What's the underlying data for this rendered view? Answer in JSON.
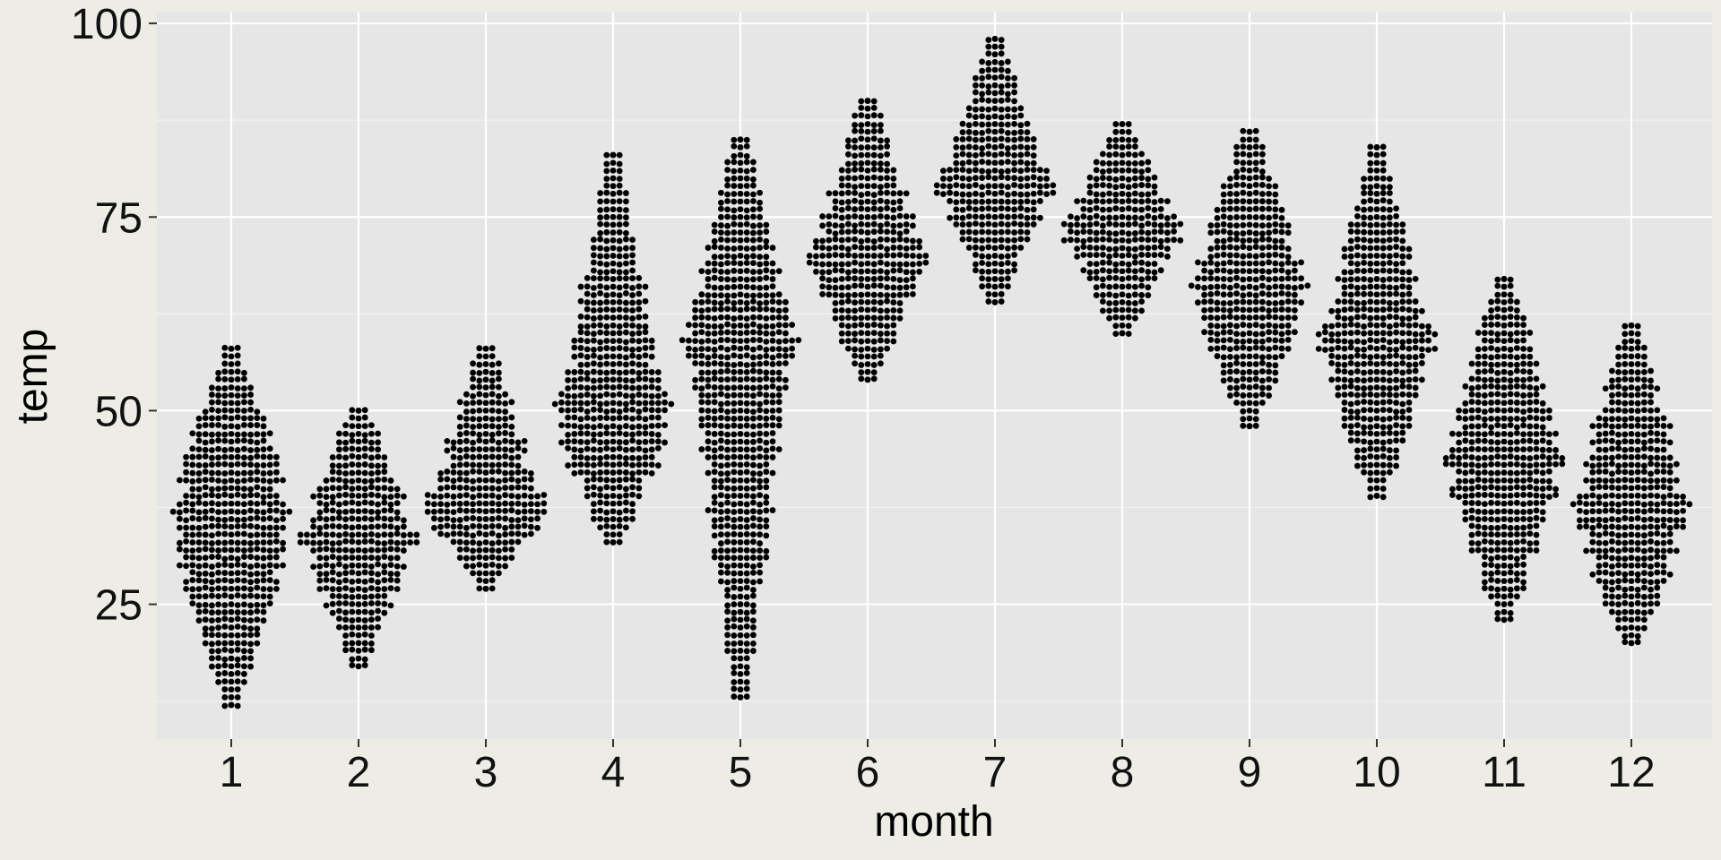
{
  "chart_data": {
    "type": "scatter",
    "subtype": "beeswarm",
    "title": "",
    "xlabel": "month",
    "ylabel": "temp",
    "categories": [
      "1",
      "2",
      "3",
      "4",
      "5",
      "6",
      "7",
      "8",
      "9",
      "10",
      "11",
      "12"
    ],
    "ylim": [
      7.6,
      101.4
    ],
    "y_ticks": [
      25,
      50,
      75,
      100
    ],
    "y_minor_ticks": [
      12.5,
      37.5,
      62.5,
      87.5
    ],
    "grid": true,
    "legend": "none",
    "point_color": "#000000",
    "panel_color": "#e6e6e6",
    "background_color": "#edede5",
    "groups": [
      {
        "month": "1",
        "min": 12,
        "max": 58,
        "q1": 27,
        "median": 36,
        "q3": 44
      },
      {
        "month": "2",
        "min": 17,
        "max": 50,
        "q1": 29,
        "median": 33,
        "q3": 40
      },
      {
        "month": "3",
        "min": 27,
        "max": 58,
        "q1": 34,
        "median": 38,
        "q3": 43
      },
      {
        "month": "4",
        "min": 33,
        "max": 83,
        "q1": 43,
        "median": 50,
        "q3": 55
      },
      {
        "month": "5",
        "min": 13,
        "max": 85,
        "q1": 53,
        "median": 59,
        "q3": 64
      },
      {
        "month": "6",
        "min": 54,
        "max": 90,
        "q1": 65,
        "median": 70,
        "q3": 75
      },
      {
        "month": "7",
        "min": 64,
        "max": 98,
        "q1": 75,
        "median": 79,
        "q3": 83
      },
      {
        "month": "8",
        "min": 60,
        "max": 87,
        "q1": 70,
        "median": 73,
        "q3": 77
      },
      {
        "month": "9",
        "min": 48,
        "max": 86,
        "q1": 60,
        "median": 67,
        "q3": 72
      },
      {
        "month": "10",
        "min": 39,
        "max": 84,
        "q1": 53,
        "median": 60,
        "q3": 64
      },
      {
        "month": "11",
        "min": 23,
        "max": 67,
        "q1": 36,
        "median": 45,
        "q3": 52
      },
      {
        "month": "12",
        "min": 20,
        "max": 61,
        "q1": 31,
        "median": 37,
        "q3": 44
      }
    ]
  }
}
